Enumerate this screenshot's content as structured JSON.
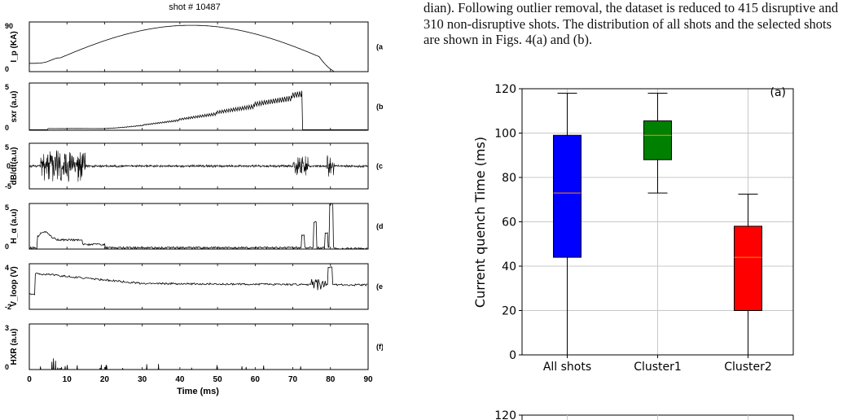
{
  "paragraph": {
    "text": "dian). Following outlier removal, the dataset is reduced to 415 disruptive and 310 non-disruptive shots. The distribution of all shots and the selected shots are shown in Figs. 4(a) and (b)."
  },
  "left_figure": {
    "title": "shot # 10487",
    "xlabel": "Time (ms)",
    "xticks": [
      "0",
      "10",
      "20",
      "30",
      "40",
      "50",
      "60",
      "70",
      "80",
      "90"
    ],
    "panels": [
      {
        "label": "(a)",
        "ylabel": "I_p (KA)",
        "ymin": "0",
        "ymax": "90"
      },
      {
        "label": "(b)",
        "ylabel": "sxr (a.u)",
        "ymin": "0",
        "ymax": "5"
      },
      {
        "label": "(c)",
        "ylabel": "dB/dt(a.u)",
        "ymin": "-5",
        "ymid": "0",
        "ymax": "5"
      },
      {
        "label": "(d)",
        "ylabel": "H_α (a.u)",
        "ymin": "0",
        "ymax": "5"
      },
      {
        "label": "(e)",
        "ylabel": "V_loop (V)",
        "ymin": "-2",
        "ymax": "4"
      },
      {
        "label": "(f)",
        "ylabel": "HXR (a.u)",
        "ymin": "0",
        "ymax": "3"
      }
    ]
  },
  "chart_data": [
    {
      "type": "box",
      "panel_label": "(a)",
      "ylabel": "Current quench Time (ms)",
      "ylim": [
        0,
        120
      ],
      "yticks": [
        0,
        20,
        40,
        60,
        80,
        100,
        120
      ],
      "grid": true,
      "categories": [
        "All shots",
        "Cluster1",
        "Cluster2"
      ],
      "boxes": [
        {
          "name": "All shots",
          "min": 0,
          "q1": 44,
          "median": 73,
          "q3": 99,
          "max": 118,
          "color": "#0000ff"
        },
        {
          "name": "Cluster1",
          "min": 73,
          "q1": 88,
          "median": 99,
          "q3": 105.5,
          "max": 118,
          "color": "#008000"
        },
        {
          "name": "Cluster2",
          "min": 0,
          "q1": 20,
          "median": 44,
          "q3": 58,
          "max": 72.5,
          "color": "#ff0000"
        }
      ],
      "median_color": "#ff8c00"
    },
    {
      "type": "box",
      "partial": true,
      "yticks": [
        120
      ]
    }
  ]
}
